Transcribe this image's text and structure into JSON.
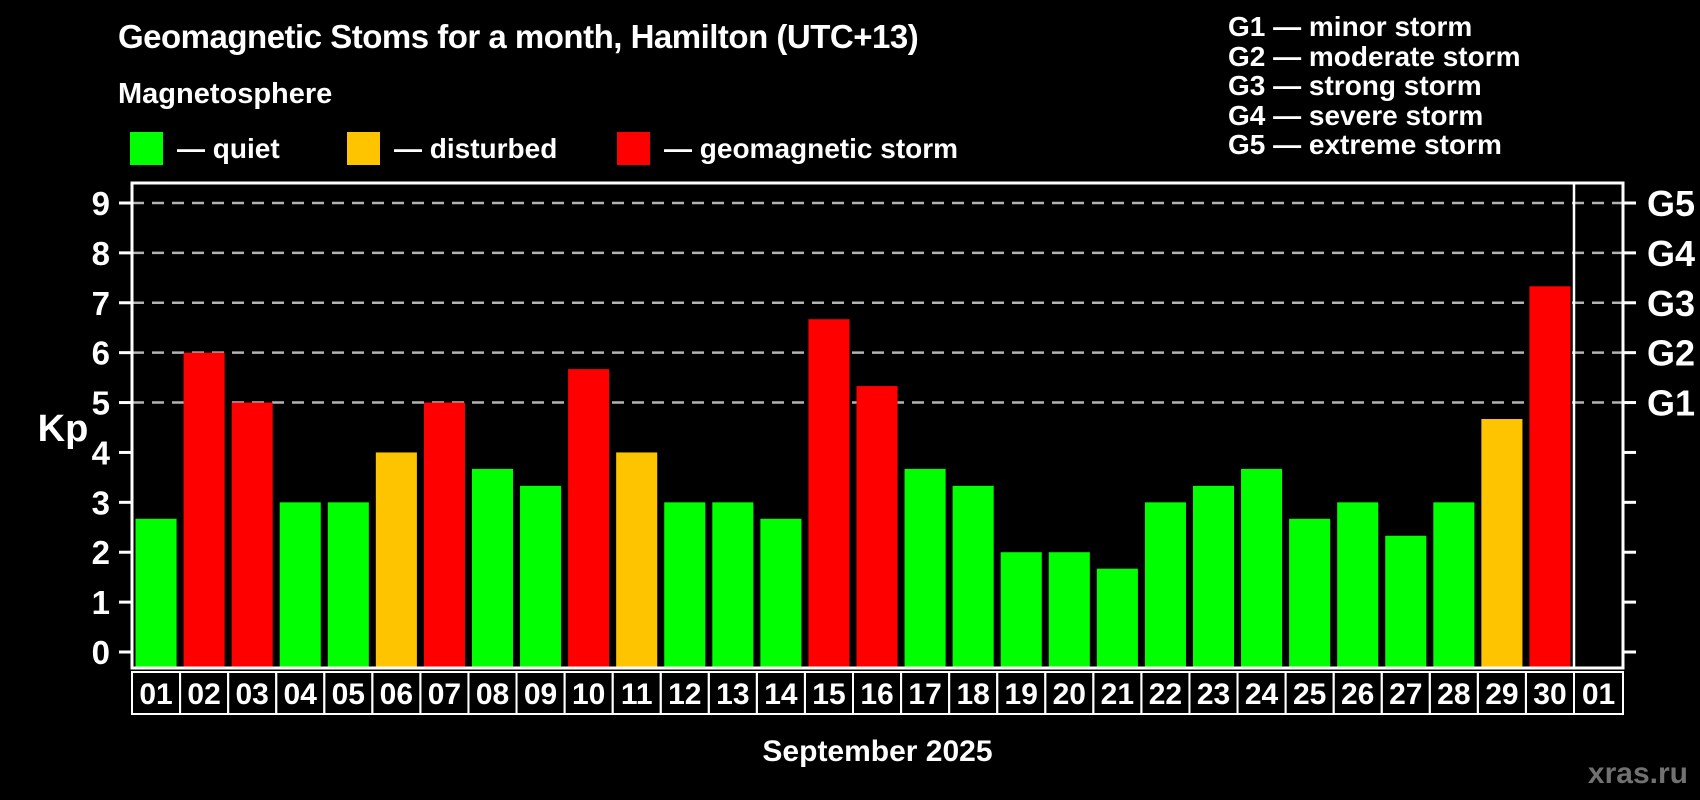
{
  "page": {
    "background": "#000000",
    "watermark": "xras.ru"
  },
  "header": {
    "title": "Geomagnetic Stoms for a month, Hamilton (UTC+13)",
    "subtitle": "Magnetosphere"
  },
  "legend": {
    "items": [
      {
        "key": "quiet",
        "label": "— quiet",
        "color": "#00FF00"
      },
      {
        "key": "disturbed",
        "label": "— disturbed",
        "color": "#FFC400"
      },
      {
        "key": "storm",
        "label": "— geomagnetic storm",
        "color": "#FF0000"
      }
    ]
  },
  "g_legend": {
    "lines": [
      "G1 — minor storm",
      "G2 — moderate storm",
      "G3 — strong storm",
      "G4 — severe storm",
      "G5 — extreme storm"
    ]
  },
  "chart_data": {
    "type": "bar",
    "title": "Geomagnetic Stoms for a month, Hamilton (UTC+13)",
    "subtitle": "Magnetosphere",
    "xlabel": "September 2025",
    "ylabel": "Kp",
    "ylim": [
      0,
      9
    ],
    "yticks": [
      0,
      1,
      2,
      3,
      4,
      5,
      6,
      7,
      8,
      9
    ],
    "grid_kp": [
      5,
      6,
      7,
      8,
      9
    ],
    "grid_color": "#B3B3B3",
    "axis_color": "#FFFFFF",
    "right_axis_labels": [
      {
        "kp": 5,
        "text": "G1"
      },
      {
        "kp": 6,
        "text": "G2"
      },
      {
        "kp": 7,
        "text": "G3"
      },
      {
        "kp": 8,
        "text": "G4"
      },
      {
        "kp": 9,
        "text": "G5"
      }
    ],
    "categories": [
      "01",
      "02",
      "03",
      "04",
      "05",
      "06",
      "07",
      "08",
      "09",
      "10",
      "11",
      "12",
      "13",
      "14",
      "15",
      "16",
      "17",
      "18",
      "19",
      "20",
      "21",
      "22",
      "23",
      "24",
      "25",
      "26",
      "27",
      "28",
      "29",
      "30"
    ],
    "values": [
      2.67,
      6,
      5,
      3,
      3,
      4,
      5,
      3.67,
      3.33,
      5.67,
      4,
      3,
      3,
      2.67,
      6.67,
      5.33,
      3.67,
      3.33,
      2,
      2,
      1.67,
      3,
      3.33,
      3.67,
      2.67,
      3,
      2.33,
      3,
      4.67,
      7.33
    ],
    "levels": [
      "quiet",
      "storm",
      "storm",
      "quiet",
      "quiet",
      "disturbed",
      "storm",
      "quiet",
      "quiet",
      "storm",
      "disturbed",
      "quiet",
      "quiet",
      "quiet",
      "storm",
      "storm",
      "quiet",
      "quiet",
      "quiet",
      "quiet",
      "quiet",
      "quiet",
      "quiet",
      "quiet",
      "quiet",
      "quiet",
      "quiet",
      "quiet",
      "disturbed",
      "storm"
    ],
    "colors": {
      "quiet": "#00FF00",
      "disturbed": "#FFC400",
      "storm": "#FF0000"
    },
    "next_month_category": "01",
    "legend_position": "top"
  }
}
